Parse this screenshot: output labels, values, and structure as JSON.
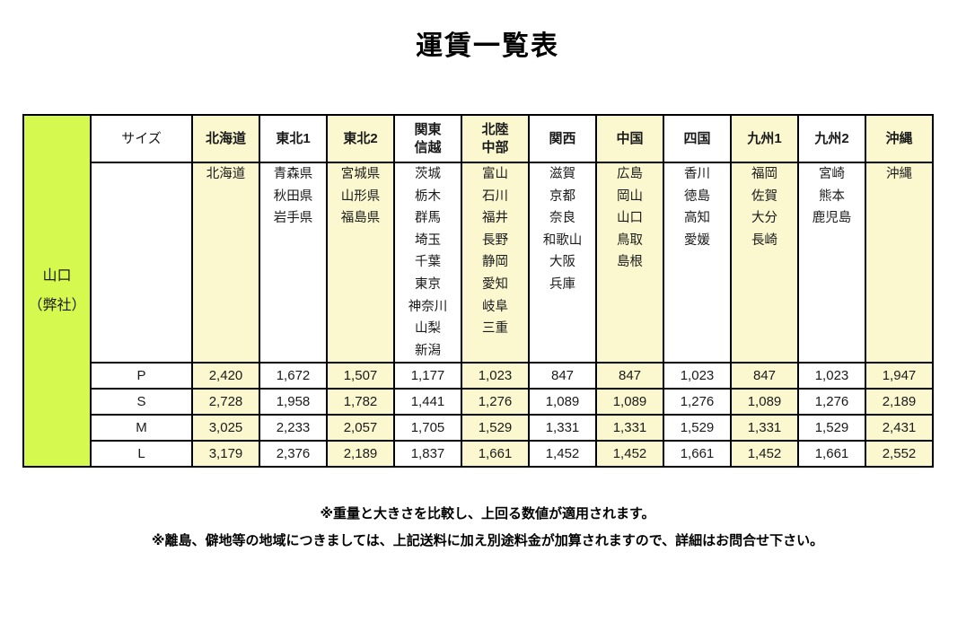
{
  "title": "運賃一覧表",
  "table": {
    "origin_lines": [
      "山口",
      "（弊社）"
    ],
    "size_header": "サイズ",
    "columns": [
      {
        "label_lines": [
          "北海道"
        ],
        "prefectures": [
          "北海道"
        ],
        "highlight": true
      },
      {
        "label_lines": [
          "東北1"
        ],
        "prefectures": [
          "青森県",
          "秋田県",
          "岩手県"
        ],
        "highlight": false
      },
      {
        "label_lines": [
          "東北2"
        ],
        "prefectures": [
          "宮城県",
          "山形県",
          "福島県"
        ],
        "highlight": true
      },
      {
        "label_lines": [
          "関東",
          "信越"
        ],
        "prefectures": [
          "茨城",
          "栃木",
          "群馬",
          "埼玉",
          "千葉",
          "東京",
          "神奈川",
          "山梨",
          "新潟"
        ],
        "highlight": false
      },
      {
        "label_lines": [
          "北陸",
          "中部"
        ],
        "prefectures": [
          "富山",
          "石川",
          "福井",
          "長野",
          "静岡",
          "愛知",
          "岐阜",
          "三重"
        ],
        "highlight": true
      },
      {
        "label_lines": [
          "関西"
        ],
        "prefectures": [
          "滋賀",
          "京都",
          "奈良",
          "和歌山",
          "大阪",
          "兵庫"
        ],
        "highlight": false
      },
      {
        "label_lines": [
          "中国"
        ],
        "prefectures": [
          "広島",
          "岡山",
          "山口",
          "鳥取",
          "島根"
        ],
        "highlight": true
      },
      {
        "label_lines": [
          "四国"
        ],
        "prefectures": [
          "香川",
          "徳島",
          "高知",
          "愛媛"
        ],
        "highlight": false
      },
      {
        "label_lines": [
          "九州1"
        ],
        "prefectures": [
          "福岡",
          "佐賀",
          "大分",
          "長崎"
        ],
        "highlight": true
      },
      {
        "label_lines": [
          "九州2"
        ],
        "prefectures": [
          "宮崎",
          "熊本",
          "鹿児島"
        ],
        "highlight": false
      },
      {
        "label_lines": [
          "沖縄"
        ],
        "prefectures": [
          "沖縄"
        ],
        "highlight": true
      }
    ],
    "size_rows": [
      {
        "size": "P",
        "values": [
          "2,420",
          "1,672",
          "1,507",
          "1,177",
          "1,023",
          "847",
          "847",
          "1,023",
          "847",
          "1,023",
          "1,947"
        ]
      },
      {
        "size": "S",
        "values": [
          "2,728",
          "1,958",
          "1,782",
          "1,441",
          "1,276",
          "1,089",
          "1,089",
          "1,276",
          "1,089",
          "1,276",
          "2,189"
        ]
      },
      {
        "size": "M",
        "values": [
          "3,025",
          "2,233",
          "2,057",
          "1,705",
          "1,529",
          "1,331",
          "1,331",
          "1,529",
          "1,331",
          "1,529",
          "2,431"
        ]
      },
      {
        "size": "L",
        "values": [
          "3,179",
          "2,376",
          "2,189",
          "1,837",
          "1,661",
          "1,452",
          "1,452",
          "1,661",
          "1,452",
          "1,661",
          "2,552"
        ]
      }
    ]
  },
  "colors": {
    "origin_bg": "#d5f94f",
    "column_highlight_bg": "#fbf8d0",
    "border": "#000000"
  },
  "notes": [
    "※重量と大きさを比較し、上回る数値が適用されます。",
    "※離島、僻地等の地域につきましては、上記送料に加え別途料金が加算されますので、詳細はお問合せ下さい。"
  ]
}
